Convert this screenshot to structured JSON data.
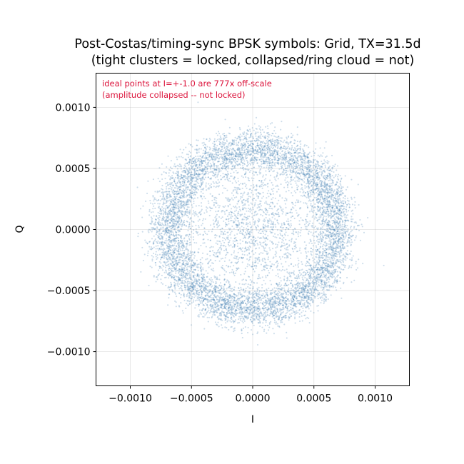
{
  "chart_data": {
    "type": "scatter",
    "title": "Post-Costas/timing-sync BPSK symbols: Grid, TX=31.5d",
    "subtitle": "(tight clusters = locked, collapsed/ring cloud = not)",
    "xlabel": "I",
    "ylabel": "Q",
    "xlim": [
      -0.00128,
      0.00128
    ],
    "ylim": [
      -0.00128,
      0.00128
    ],
    "xticks": [
      -0.001,
      -0.0005,
      0.0,
      0.0005,
      0.001
    ],
    "xtick_labels": [
      "−0.0010",
      "−0.0005",
      "0.0000",
      "0.0005",
      "0.0010"
    ],
    "yticks": [
      -0.001,
      -0.0005,
      0.0,
      0.0005,
      0.001
    ],
    "ytick_labels": [
      "−0.0010",
      "−0.0005",
      "0.0000",
      "0.0005",
      "0.0010"
    ],
    "grid": true,
    "point_color": "#4682b4",
    "annotation": {
      "lines": [
        "ideal points at I=+-1.0 are 777x off-scale",
        "(amplitude collapsed -- not locked)"
      ],
      "color": "#dc143c",
      "placement": "top-left"
    },
    "distribution": {
      "shape": "ring",
      "ring_radius": 0.00066,
      "ring_spread": 8.5e-05,
      "ring_fraction": 0.82,
      "center_spread": 0.00028,
      "approx_points": 30000
    }
  }
}
